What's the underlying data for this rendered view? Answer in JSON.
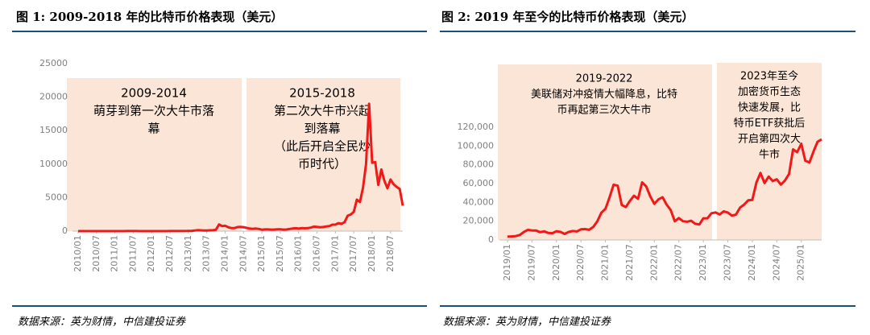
{
  "chart_data": [
    {
      "type": "line",
      "title": "图 1: 2009-2018 年的比特币价格表现（美元）",
      "source": "数据来源：英为财情，中信建投证券",
      "annotations": [
        [
          "2009-2014",
          "萌芽到第一次大牛市落",
          "幕"
        ],
        [
          "2015-2018",
          "第二次大牛市兴起",
          "到落幕",
          "（此后开启全民炒",
          "币时代）"
        ]
      ],
      "xlim": [
        "2010/01",
        "2018/11"
      ],
      "xticks": [
        "2010/01",
        "2010/07",
        "2011/01",
        "2011/07",
        "2012/01",
        "2012/07",
        "2013/01",
        "2013/07",
        "2014/01",
        "2014/07",
        "2015/01",
        "2015/07",
        "2016/01",
        "2016/07",
        "2017/01",
        "2017/07",
        "2018/01",
        "2018/07"
      ],
      "ylim": [
        0,
        25000
      ],
      "yticks": [
        0,
        5000,
        10000,
        15000,
        20000,
        25000
      ],
      "x": [
        "2010/01",
        "2010/02",
        "2010/03",
        "2010/04",
        "2010/05",
        "2010/06",
        "2010/07",
        "2010/08",
        "2010/09",
        "2010/10",
        "2010/11",
        "2010/12",
        "2011/01",
        "2011/02",
        "2011/03",
        "2011/04",
        "2011/05",
        "2011/06",
        "2011/07",
        "2011/08",
        "2011/09",
        "2011/10",
        "2011/11",
        "2011/12",
        "2012/01",
        "2012/02",
        "2012/03",
        "2012/04",
        "2012/05",
        "2012/06",
        "2012/07",
        "2012/08",
        "2012/09",
        "2012/10",
        "2012/11",
        "2012/12",
        "2013/01",
        "2013/02",
        "2013/03",
        "2013/04",
        "2013/05",
        "2013/06",
        "2013/07",
        "2013/08",
        "2013/09",
        "2013/10",
        "2013/11",
        "2013/12",
        "2014/01",
        "2014/02",
        "2014/03",
        "2014/04",
        "2014/05",
        "2014/06",
        "2014/07",
        "2014/08",
        "2014/09",
        "2014/10",
        "2014/11",
        "2014/12",
        "2015/01",
        "2015/02",
        "2015/03",
        "2015/04",
        "2015/05",
        "2015/06",
        "2015/07",
        "2015/08",
        "2015/09",
        "2015/10",
        "2015/11",
        "2015/12",
        "2016/01",
        "2016/02",
        "2016/03",
        "2016/04",
        "2016/05",
        "2016/06",
        "2016/07",
        "2016/08",
        "2016/09",
        "2016/10",
        "2016/11",
        "2016/12",
        "2017/01",
        "2017/02",
        "2017/03",
        "2017/04",
        "2017/05",
        "2017/06",
        "2017/07",
        "2017/08",
        "2017/09",
        "2017/10",
        "2017/11",
        "2017/12",
        "2018/01",
        "2018/02",
        "2018/03",
        "2018/04",
        "2018/05",
        "2018/06",
        "2018/07",
        "2018/08",
        "2018/09",
        "2018/10",
        "2018/11"
      ],
      "series": [
        {
          "color": "#f01818",
          "values": [
            0,
            0,
            0,
            0,
            0,
            0,
            0,
            0,
            0,
            0,
            0,
            0,
            0,
            1,
            1,
            1,
            8,
            17,
            14,
            9,
            5,
            3,
            3,
            4,
            5,
            5,
            5,
            5,
            5,
            6,
            8,
            10,
            12,
            11,
            12,
            13,
            20,
            33,
            90,
            140,
            120,
            100,
            100,
            120,
            130,
            200,
            1000,
            750,
            800,
            580,
            460,
            450,
            600,
            640,
            590,
            480,
            390,
            340,
            380,
            320,
            220,
            250,
            250,
            230,
            230,
            260,
            280,
            230,
            240,
            310,
            380,
            430,
            370,
            440,
            420,
            450,
            530,
            670,
            620,
            580,
            610,
            700,
            740,
            960,
            970,
            1190,
            1080,
            1350,
            2300,
            2480,
            2870,
            4700,
            4340,
            6450,
            10000,
            19000,
            10200,
            10300,
            6900,
            9200,
            7500,
            6400,
            7700,
            7000,
            6600,
            6300,
            3800
          ]
        }
      ]
    },
    {
      "type": "line",
      "title": "图 2: 2019 年至今的比特币价格表现（美元）",
      "source": "数据来源：英为财情，中信建投证券",
      "annotations": [
        [
          "2019-2022",
          "美联储对冲疫情大幅降息，比特",
          "币再起第三次大牛市"
        ],
        [
          "2023年至今",
          "加密货币生态",
          "快速发展，比",
          "特币ETF获批后",
          "开启第四次大",
          "牛市"
        ]
      ],
      "xlim": [
        "2019/01",
        "2025/06"
      ],
      "xticks": [
        "2019/01",
        "2019/07",
        "2020/01",
        "2020/07",
        "2021/01",
        "2021/07",
        "2022/01",
        "2022/07",
        "2023/01",
        "2023/07",
        "2024/01",
        "2024/07",
        "2025/01"
      ],
      "ylim": [
        0,
        120000
      ],
      "yticks": [
        0,
        {
          "value": 20000,
          "label": "20,000"
        },
        {
          "value": 40000,
          "label": "40,000"
        },
        {
          "value": 60000,
          "label": "60,000"
        },
        {
          "value": 80000,
          "label": "80,000"
        },
        {
          "value": 100000,
          "label": "100,000"
        },
        {
          "value": 120000,
          "label": "120,000"
        }
      ],
      "x": [
        "2019/01",
        "2019/02",
        "2019/03",
        "2019/04",
        "2019/05",
        "2019/06",
        "2019/07",
        "2019/08",
        "2019/09",
        "2019/10",
        "2019/11",
        "2019/12",
        "2020/01",
        "2020/02",
        "2020/03",
        "2020/04",
        "2020/05",
        "2020/06",
        "2020/07",
        "2020/08",
        "2020/09",
        "2020/10",
        "2020/11",
        "2020/12",
        "2021/01",
        "2021/02",
        "2021/03",
        "2021/04",
        "2021/05",
        "2021/06",
        "2021/07",
        "2021/08",
        "2021/09",
        "2021/10",
        "2021/11",
        "2021/12",
        "2022/01",
        "2022/02",
        "2022/03",
        "2022/04",
        "2022/05",
        "2022/06",
        "2022/07",
        "2022/08",
        "2022/09",
        "2022/10",
        "2022/11",
        "2022/12",
        "2023/01",
        "2023/02",
        "2023/03",
        "2023/04",
        "2023/05",
        "2023/06",
        "2023/07",
        "2023/08",
        "2023/09",
        "2023/10",
        "2023/11",
        "2023/12",
        "2024/01",
        "2024/02",
        "2024/03",
        "2024/04",
        "2024/05",
        "2024/06",
        "2024/07",
        "2024/08",
        "2024/09",
        "2024/10",
        "2024/11",
        "2024/12",
        "2025/01",
        "2025/02",
        "2025/03",
        "2025/04",
        "2025/05",
        "2025/06"
      ],
      "series": [
        {
          "color": "#f01818",
          "values": [
            3500,
            3800,
            4100,
            5300,
            8500,
            10800,
            10100,
            10000,
            8300,
            9200,
            7500,
            7200,
            9300,
            8600,
            6400,
            8600,
            9500,
            9100,
            11300,
            11600,
            10800,
            13800,
            19700,
            29000,
            33100,
            45200,
            58800,
            57800,
            37300,
            35000,
            41500,
            47100,
            43800,
            61300,
            57000,
            46300,
            38500,
            43200,
            45500,
            37700,
            31800,
            19900,
            23300,
            20000,
            19400,
            20500,
            17200,
            16500,
            23100,
            23100,
            28500,
            29300,
            27200,
            30500,
            29200,
            25900,
            27000,
            34500,
            37700,
            42300,
            42600,
            61200,
            71300,
            60600,
            67500,
            62700,
            64600,
            58900,
            63300,
            70200,
            96400,
            93400,
            102400,
            84300,
            82500,
            94200,
            104600,
            107100
          ]
        }
      ]
    }
  ]
}
